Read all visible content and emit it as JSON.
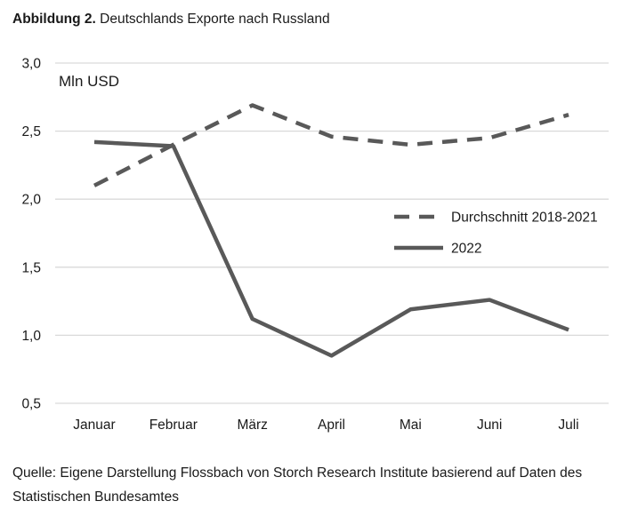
{
  "figure": {
    "label": "Abbildung 2.",
    "title": "Deutschlands Exporte nach Russland",
    "source": "Quelle: Eigene Darstellung Flossbach von Storch Research Institute basierend auf Daten des Statistischen Bundesamtes"
  },
  "chart_data": {
    "type": "line",
    "title": "Deutschlands Exporte nach Russland",
    "unit_label": "Mln USD",
    "ylabel": "",
    "xlabel": "",
    "categories": [
      "Januar",
      "Februar",
      "März",
      "April",
      "Mai",
      "Juni",
      "Juli"
    ],
    "ylim": [
      0.5,
      3.0
    ],
    "yticks": [
      0.5,
      1.0,
      1.5,
      2.0,
      2.5,
      3.0
    ],
    "ytick_labels": [
      "0,5",
      "1,0",
      "1,5",
      "2,0",
      "2,5",
      "3,0"
    ],
    "grid": true,
    "legend": "right",
    "series": [
      {
        "name": "Durchschnitt 2018-2021",
        "style": "dashed",
        "color": "#595959",
        "values": [
          2.1,
          2.4,
          2.69,
          2.46,
          2.4,
          2.45,
          2.62
        ]
      },
      {
        "name": "2022",
        "style": "solid",
        "color": "#595959",
        "values": [
          2.42,
          2.39,
          1.12,
          0.85,
          1.19,
          1.26,
          1.04
        ]
      }
    ]
  }
}
